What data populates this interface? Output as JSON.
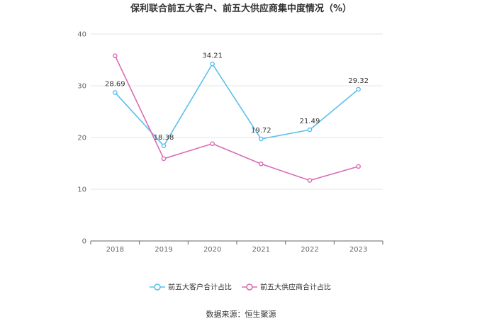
{
  "chart_data": {
    "type": "line",
    "title": "保利联合前五大客户、前五大供应商集中度情况（%）",
    "xlabel": "",
    "ylabel": "",
    "categories": [
      "2018",
      "2019",
      "2020",
      "2021",
      "2022",
      "2023"
    ],
    "ylim": [
      0,
      40
    ],
    "yticks": [
      0,
      10,
      20,
      30,
      40
    ],
    "grid": true,
    "legend_position": "bottom",
    "series": [
      {
        "name": "前五大客户合计占比",
        "color": "#5bc0eb",
        "values": [
          28.69,
          18.38,
          34.21,
          19.72,
          21.49,
          29.32
        ],
        "labels": [
          "28.69",
          "18.38",
          "34.21",
          "19.72",
          "21.49",
          "29.32"
        ]
      },
      {
        "name": "前五大供应商合计占比",
        "color": "#d96bb5",
        "values": [
          35.8,
          15.9,
          18.8,
          14.9,
          11.7,
          14.4
        ]
      }
    ],
    "source": "数据来源：恒生聚源"
  }
}
